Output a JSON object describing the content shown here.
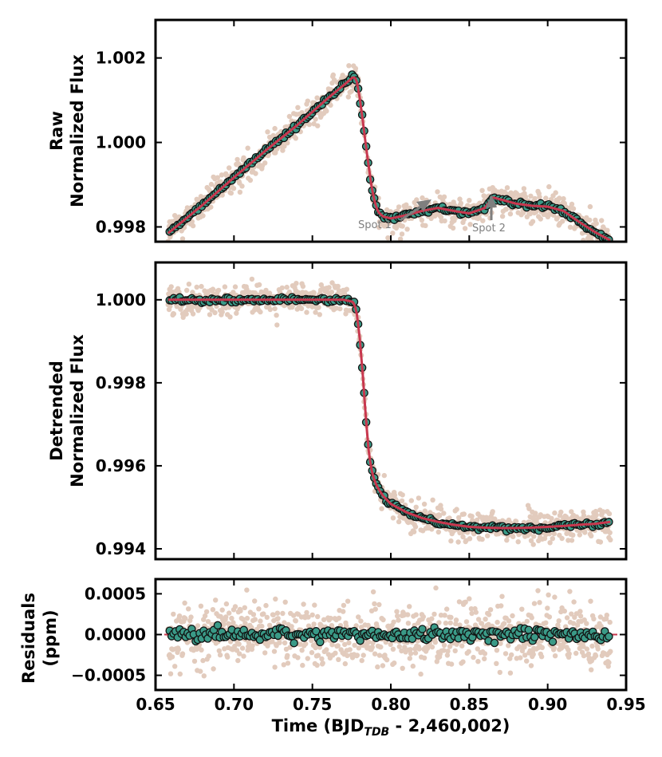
{
  "colors": {
    "raw_points": "#e2cbbd",
    "binned_fill": "#3a9a87",
    "binned_edge": "#111111",
    "model_line": "#c8374e",
    "zero_line": "#c8374e",
    "annotation": "#7f7f7f",
    "axes": "#000000"
  },
  "chart_data": [
    {
      "type": "scatter",
      "panel": "raw",
      "ylabel_line1": "Raw",
      "ylabel_line2": "Normalized Flux",
      "xlim": [
        0.65,
        0.95
      ],
      "ylim": [
        0.99765,
        1.0029
      ],
      "yticks": [
        0.998,
        1.0,
        1.002
      ],
      "ytick_labels": [
        "0.998",
        "1.000",
        "1.002"
      ],
      "model": {
        "name": "model",
        "x": [
          0.658,
          0.68,
          0.7,
          0.72,
          0.74,
          0.76,
          0.772,
          0.776,
          0.778,
          0.78,
          0.782,
          0.784,
          0.786,
          0.788,
          0.79,
          0.792,
          0.795,
          0.8,
          0.81,
          0.82,
          0.83,
          0.84,
          0.85,
          0.86,
          0.865,
          0.87,
          0.88,
          0.89,
          0.9,
          0.91,
          0.92,
          0.93,
          0.94
        ],
        "y": [
          0.99785,
          0.99852,
          0.99917,
          0.9998,
          1.0004,
          1.00105,
          1.00142,
          1.00155,
          1.0015,
          1.0011,
          1.00055,
          0.99995,
          0.9994,
          0.9989,
          0.99855,
          0.99835,
          0.99825,
          0.9982,
          0.99828,
          0.99838,
          0.99845,
          0.99838,
          0.99832,
          0.99845,
          0.9987,
          0.99865,
          0.99855,
          0.9985,
          0.99848,
          0.99838,
          0.99812,
          0.99788,
          0.99768
        ]
      },
      "annotations": [
        {
          "text": "Spot 1",
          "x": 0.827,
          "y": 0.99817
        },
        {
          "text": "Spot 2",
          "x": 0.866,
          "y": 0.99828
        }
      ]
    },
    {
      "type": "scatter",
      "panel": "detrended",
      "ylabel_line1": "Detrended",
      "ylabel_line2": "Normalized Flux",
      "xlim": [
        0.65,
        0.95
      ],
      "ylim": [
        0.99375,
        1.0009
      ],
      "yticks": [
        0.994,
        0.996,
        0.998,
        1.0
      ],
      "ytick_labels": [
        "0.994",
        "0.996",
        "0.998",
        "1.000"
      ],
      "model": {
        "name": "model",
        "x": [
          0.658,
          0.7,
          0.74,
          0.77,
          0.776,
          0.778,
          0.78,
          0.782,
          0.784,
          0.786,
          0.788,
          0.79,
          0.792,
          0.795,
          0.8,
          0.81,
          0.82,
          0.83,
          0.84,
          0.85,
          0.86,
          0.87,
          0.88,
          0.89,
          0.9,
          0.91,
          0.92,
          0.93,
          0.94
        ],
        "y": [
          1.0,
          1.0,
          1.0,
          1.0,
          0.99995,
          0.99975,
          0.99915,
          0.99825,
          0.9972,
          0.9963,
          0.99585,
          0.9956,
          0.99545,
          0.99528,
          0.99508,
          0.99488,
          0.99474,
          0.99465,
          0.99458,
          0.99453,
          0.99451,
          0.9945,
          0.9945,
          0.99451,
          0.99453,
          0.99455,
          0.99458,
          0.9946,
          0.99465
        ]
      }
    },
    {
      "type": "scatter",
      "panel": "residuals",
      "ylabel_line1": "Residuals",
      "ylabel_line2": "(ppm)",
      "xlabel_prefix": "Time (BJD",
      "xlabel_sub": "TDB",
      "xlabel_suffix": " - 2,460,002)",
      "xlim": [
        0.65,
        0.95
      ],
      "ylim": [
        -0.00068,
        0.00068
      ],
      "yticks": [
        -0.0005,
        0.0,
        0.0005
      ],
      "ytick_labels": [
        "−0.0005",
        "0.0000",
        "0.0005"
      ],
      "xticks": [
        0.65,
        0.7,
        0.75,
        0.8,
        0.85,
        0.9,
        0.95
      ],
      "xtick_labels": [
        "0.65",
        "0.70",
        "0.75",
        "0.80",
        "0.85",
        "0.90",
        "0.95"
      ],
      "zero_line": 0.0
    }
  ]
}
